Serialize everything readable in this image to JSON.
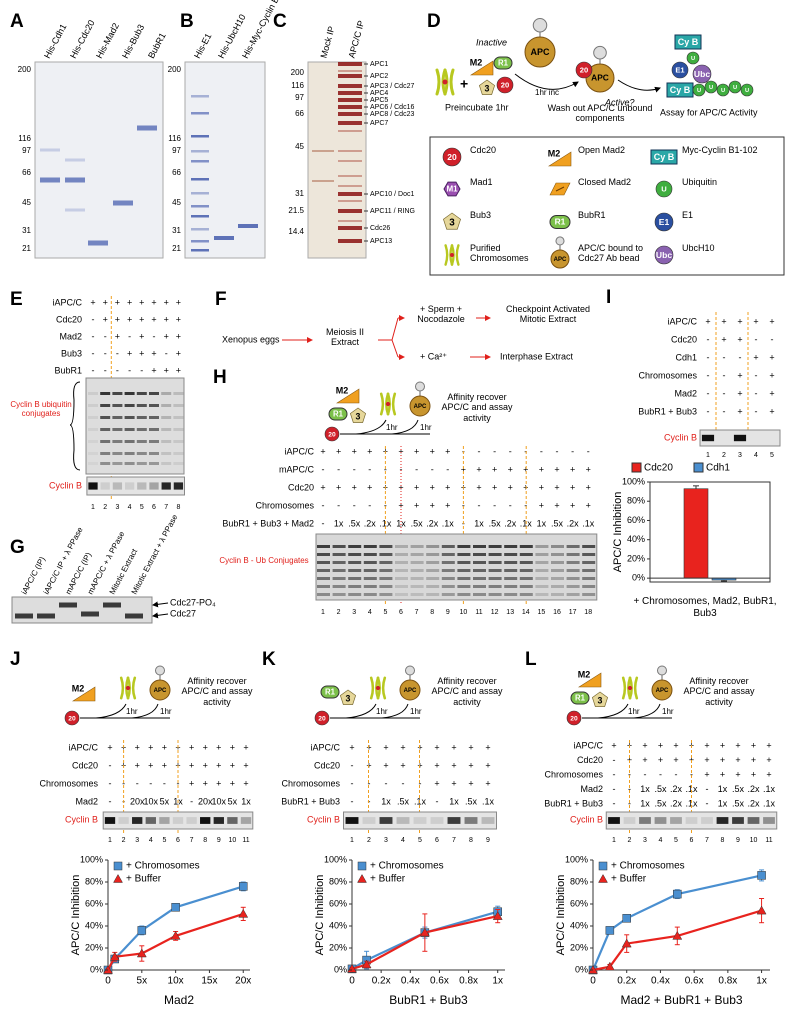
{
  "panels": {
    "A": {
      "label": "A",
      "lanes": [
        "His-Cdh1",
        "His-Cdc20",
        "His-Mad2",
        "His-Bub3",
        "BubR1"
      ],
      "markers": [
        200,
        116,
        97,
        66,
        45,
        31,
        21
      ]
    },
    "B": {
      "label": "B",
      "lanes": [
        "His-E1",
        "His-UbcH10",
        "His-Myc-Cyclin B1-102"
      ],
      "markers": [
        200,
        116,
        97,
        66,
        45,
        31,
        21
      ]
    },
    "C": {
      "label": "C",
      "lanes": [
        "Mock IP",
        "APC/C IP"
      ],
      "markers": [
        200,
        116,
        97,
        66,
        45,
        31,
        21.5,
        14.4
      ],
      "bands": [
        "APC1",
        "APC2",
        "APC3 / Cdc27",
        "APC4",
        "APC5",
        "APC6 / Cdc16",
        "APC8 / Cdc23",
        "APC7",
        "APC10 / Doc1",
        "APC11 / RING",
        "Cdc26",
        "APC13"
      ]
    },
    "D": {
      "label": "D",
      "inactive": "Inactive",
      "apc": "APC",
      "plus": "+",
      "m2": "M2",
      "r1": "R1",
      "bub3": "3",
      "cdc20": "20",
      "preincubate": "Preincubate 1hr",
      "incubation": "1hr inc",
      "wash": "Wash out APC/C unbound components",
      "apc_active": "APC",
      "cdc20_active": "20",
      "active": "Active?",
      "cyclin": "Cy B",
      "ubiquitin": "U",
      "e1": "E1",
      "ubc": "Ubc",
      "product": "Cy B",
      "chain": [
        "U",
        "U",
        "U",
        "U",
        "U"
      ],
      "assay": "Assay for APC/C Activity",
      "legend": [
        {
          "icon": "20",
          "label": "Cdc20"
        },
        {
          "icon": "M2",
          "label": "Open Mad2"
        },
        {
          "icon": "Cy B",
          "label": "Myc-Cyclin B1-102"
        },
        {
          "icon": "M1",
          "label": "Mad1"
        },
        {
          "label": "Closed Mad2"
        },
        {
          "icon": "U",
          "label": "Ubiquitin"
        },
        {
          "icon": "3",
          "label": "Bub3"
        },
        {
          "icon": "R1",
          "label": "BubR1"
        },
        {
          "icon": "E1",
          "label": "E1"
        },
        {
          "label": "Purified Chromosomes"
        },
        {
          "icon": "APC",
          "label": "APC/C bound to Cdc27 Ab bead"
        },
        {
          "icon": "Ubc",
          "label": "UbcH10"
        }
      ]
    },
    "E": {
      "label": "E",
      "rows": [
        {
          "name": "iAPC/C",
          "cells": [
            "+",
            "+",
            "+",
            "+",
            "+",
            "+",
            "+",
            "+"
          ]
        },
        {
          "name": "Cdc20",
          "cells": [
            "-",
            "+",
            "+",
            "+",
            "+",
            "+",
            "+",
            "+"
          ]
        },
        {
          "name": "Mad2",
          "cells": [
            "-",
            "-",
            "+",
            "-",
            "+",
            "-",
            "+",
            "+"
          ]
        },
        {
          "name": "Bub3",
          "cells": [
            "-",
            "-",
            "-",
            "+",
            "+",
            "+",
            "-",
            "+"
          ]
        },
        {
          "name": "BubR1",
          "cells": [
            "-",
            "-",
            "-",
            "-",
            "-",
            "+",
            "+",
            "+"
          ]
        }
      ],
      "conjugates": "Cyclin B ubiquitin conjugates",
      "cyclin": "Cyclin B",
      "lanes": [
        1,
        2,
        3,
        4,
        5,
        6,
        7,
        8
      ]
    },
    "F": {
      "label": "F",
      "source": "Xenopus eggs",
      "extract": "Meiosis II Extract",
      "branch1": "+ Sperm + Nocodazole",
      "result1": "Checkpoint Activated Mitotic Extract",
      "branch2": "+ Ca²⁺",
      "result2": "Interphase Extract"
    },
    "G": {
      "label": "G",
      "lanes": [
        "iAPC/C (IP)",
        "iAPC/C IP + λ PPase",
        "mAPC/C (IP)",
        "mAPC/C + λ PPase",
        "Mitotic Extract",
        "Mitotic Extract + λ PPase"
      ],
      "bands": [
        "Cdc27-PO₄",
        "Cdc27"
      ]
    },
    "H": {
      "label": "H",
      "schematic": {
        "icons": [
          "M2",
          "R1",
          "3"
        ],
        "cdc20": "20",
        "apc": "APC",
        "steps": [
          "1hr",
          "1hr"
        ],
        "caption": "Affinity recover APC/C and assay activity"
      },
      "rows": [
        {
          "name": "iAPC/C",
          "cells": [
            "+",
            "+",
            "+",
            "+",
            "+",
            "+",
            "+",
            "+",
            "+",
            "-",
            "-",
            "-",
            "-",
            "-",
            "-",
            "-",
            "-",
            "-"
          ]
        },
        {
          "name": "mAPC/C",
          "cells": [
            "-",
            "-",
            "-",
            "-",
            "-",
            "-",
            "-",
            "-",
            "-",
            "+",
            "+",
            "+",
            "+",
            "+",
            "+",
            "+",
            "+",
            "+"
          ]
        },
        {
          "name": "Cdc20",
          "cells": [
            "+",
            "+",
            "+",
            "+",
            "+",
            "+",
            "+",
            "+",
            "+",
            "+",
            "+",
            "+",
            "+",
            "+",
            "+",
            "+",
            "+",
            "+"
          ]
        },
        {
          "name": "Chromosomes",
          "cells": [
            "-",
            "-",
            "-",
            "-",
            "-",
            "+",
            "+",
            "+",
            "+",
            "-",
            "-",
            "-",
            "-",
            "-",
            "+",
            "+",
            "+",
            "+"
          ]
        },
        {
          "name": "BubR1 + Bub3 + Mad2",
          "cells": [
            "-",
            "1x",
            ".5x",
            ".2x",
            ".1x",
            "1x",
            ".5x",
            ".2x",
            ".1x",
            "-",
            "1x",
            ".5x",
            ".2x",
            ".1x",
            "1x",
            ".5x",
            ".2x",
            ".1x"
          ]
        }
      ],
      "conjugates": "Cyclin B - Ub Conjugates",
      "lanes": [
        1,
        2,
        3,
        4,
        5,
        6,
        7,
        8,
        9,
        10,
        11,
        12,
        13,
        14,
        15,
        16,
        17,
        18
      ]
    },
    "I": {
      "label": "I",
      "rows": [
        {
          "name": "iAPC/C",
          "cells": [
            "+",
            "+",
            "+",
            "+",
            "+"
          ]
        },
        {
          "name": "Cdc20",
          "cells": [
            "-",
            "+",
            "+",
            "-",
            "-"
          ]
        },
        {
          "name": "Cdh1",
          "cells": [
            "-",
            "-",
            "-",
            "+",
            "+"
          ]
        },
        {
          "name": "Chromosomes",
          "cells": [
            "-",
            "-",
            "+",
            "-",
            "+"
          ]
        },
        {
          "name": "Mad2",
          "cells": [
            "-",
            "-",
            "+",
            "-",
            "+"
          ]
        },
        {
          "name": "BubR1 + Bub3",
          "cells": [
            "-",
            "-",
            "+",
            "-",
            "+"
          ]
        }
      ],
      "cyclin": "Cyclin B",
      "lanes": [
        1,
        2,
        3,
        4,
        5
      ]
    },
    "J": {
      "label": "J",
      "schematic": {
        "icons": [
          "M2"
        ],
        "cdc20": "20",
        "apc": "APC",
        "steps": [
          "1hr",
          "1hr"
        ],
        "caption": "Affinity recover APC/C and assay activity"
      },
      "rows": [
        {
          "name": "iAPC/C",
          "cells": [
            "+",
            "+",
            "+",
            "+",
            "+",
            "+",
            "+",
            "+",
            "+",
            "+",
            "+"
          ]
        },
        {
          "name": "Cdc20",
          "cells": [
            "-",
            "+",
            "+",
            "+",
            "+",
            "+",
            "+",
            "+",
            "+",
            "+",
            "+"
          ]
        },
        {
          "name": "Chromosomes",
          "cells": [
            "-",
            "-",
            "-",
            "-",
            "-",
            "-",
            "+",
            "+",
            "+",
            "+",
            "+"
          ]
        },
        {
          "name": "Mad2",
          "cells": [
            "-",
            "-",
            "20x",
            "10x",
            "5x",
            "1x",
            "-",
            "20x",
            "10x",
            "5x",
            "1x"
          ]
        }
      ],
      "cyclin": "Cyclin B",
      "lanes": [
        1,
        2,
        3,
        4,
        5,
        6,
        7,
        8,
        9,
        10,
        11
      ]
    },
    "K": {
      "label": "K",
      "schematic": {
        "icons": [
          "R1",
          "3"
        ],
        "cdc20": "20",
        "apc": "APC",
        "steps": [
          "1hr",
          "1hr"
        ],
        "caption": "Affinity recover APC/C and assay activity"
      },
      "rows": [
        {
          "name": "iAPC/C",
          "cells": [
            "+",
            "+",
            "+",
            "+",
            "+",
            "+",
            "+",
            "+",
            "+"
          ]
        },
        {
          "name": "Cdc20",
          "cells": [
            "-",
            "+",
            "+",
            "+",
            "+",
            "+",
            "+",
            "+",
            "+"
          ]
        },
        {
          "name": "Chromosomes",
          "cells": [
            "-",
            "-",
            "-",
            "-",
            "-",
            "+",
            "+",
            "+",
            "+"
          ]
        },
        {
          "name": "BubR1 + Bub3",
          "cells": [
            "-",
            "-",
            "1x",
            ".5x",
            ".1x",
            "-",
            "1x",
            ".5x",
            ".1x"
          ]
        }
      ],
      "cyclin": "Cyclin B",
      "lanes": [
        1,
        2,
        3,
        4,
        5,
        6,
        7,
        8,
        9
      ]
    },
    "L": {
      "label": "L",
      "schematic": {
        "icons": [
          "M2",
          "R1",
          "3"
        ],
        "cdc20": "20",
        "apc": "APC",
        "steps": [
          "1hr",
          "1hr"
        ],
        "caption": "Affinity recover APC/C and assay activity"
      },
      "rows": [
        {
          "name": "iAPC/C",
          "cells": [
            "+",
            "+",
            "+",
            "+",
            "+",
            "+",
            "+",
            "+",
            "+",
            "+",
            "+"
          ]
        },
        {
          "name": "Cdc20",
          "cells": [
            "-",
            "+",
            "+",
            "+",
            "+",
            "+",
            "+",
            "+",
            "+",
            "+",
            "+"
          ]
        },
        {
          "name": "Chromosomes",
          "cells": [
            "-",
            "-",
            "-",
            "-",
            "-",
            "-",
            "+",
            "+",
            "+",
            "+",
            "+"
          ]
        },
        {
          "name": "Mad2",
          "cells": [
            "-",
            "-",
            "1x",
            ".5x",
            ".2x",
            ".1x",
            "-",
            "1x",
            ".5x",
            ".2x",
            ".1x"
          ]
        },
        {
          "name": "BubR1 + Bub3",
          "cells": [
            "-",
            "-",
            "1x",
            ".5x",
            ".2x",
            ".1x",
            "-",
            "1x",
            ".5x",
            ".2x",
            ".1x"
          ]
        }
      ],
      "cyclin": "Cyclin B",
      "lanes": [
        1,
        2,
        3,
        4,
        5,
        6,
        7,
        8,
        9,
        10,
        11
      ]
    }
  },
  "chart_data": [
    {
      "type": "bar",
      "categories": [
        "+ Chromosomes, Mad2, BubR1, Bub3"
      ],
      "ylabel": "APC/C Inhibition",
      "series": [
        {
          "name": "Cdc20",
          "color": "#e8231e",
          "values": [
            93
          ],
          "errors": [
            3
          ]
        },
        {
          "name": "Cdh1",
          "color": "#4a8fd0",
          "values": [
            -2
          ],
          "errors": [
            1
          ]
        }
      ],
      "ylim": [
        -4,
        100
      ],
      "yticks": [
        {
          "value": 0,
          "label": "0%"
        },
        {
          "value": 20,
          "label": "20%"
        },
        {
          "value": 40,
          "label": "40%"
        },
        {
          "value": 60,
          "label": "60%"
        },
        {
          "value": 80,
          "label": "80%"
        },
        {
          "value": 100,
          "label": "100%"
        }
      ],
      "legend": "top"
    },
    {
      "type": "line",
      "x": [
        0,
        1,
        5,
        10,
        20
      ],
      "xlabel": "Mad2",
      "ylabel": "APC/C Inhibition",
      "series": [
        {
          "name": "+ Chromosomes",
          "color": "#4a8fd0",
          "marker": "square",
          "values": [
            0,
            10,
            36,
            57,
            76
          ],
          "errors": [
            1,
            3,
            4,
            3,
            4
          ]
        },
        {
          "name": "+ Buffer",
          "color": "#e8231e",
          "marker": "triangle",
          "values": [
            0,
            12,
            15,
            31,
            51
          ],
          "errors": [
            1,
            4,
            7,
            4,
            6
          ]
        }
      ],
      "xlim": [
        0,
        21
      ],
      "xticks": [
        0,
        {
          "value": 5,
          "label": "5x"
        },
        {
          "value": 10,
          "label": "10x"
        },
        {
          "value": 15,
          "label": "15x"
        },
        {
          "value": 20,
          "label": "20x"
        }
      ],
      "ylim": [
        0,
        100
      ],
      "yticks": [
        {
          "value": 0,
          "label": "0%"
        },
        {
          "value": 20,
          "label": "20%"
        },
        {
          "value": 40,
          "label": "40%"
        },
        {
          "value": 60,
          "label": "60%"
        },
        {
          "value": 80,
          "label": "80%"
        },
        {
          "value": 100,
          "label": "100%"
        }
      ],
      "legend": "upper left"
    },
    {
      "type": "line",
      "x": [
        0,
        0.1,
        0.5,
        1
      ],
      "xlabel": "BubR1 + Bub3",
      "ylabel": "APC/C Inhibition",
      "series": [
        {
          "name": "+ Chromosomes",
          "color": "#4a8fd0",
          "marker": "square",
          "values": [
            1,
            9,
            34,
            53
          ],
          "errors": [
            1,
            8,
            5,
            5
          ]
        },
        {
          "name": "+ Buffer",
          "color": "#e8231e",
          "marker": "triangle",
          "values": [
            1,
            5,
            34,
            49
          ],
          "errors": [
            1,
            3,
            17,
            6
          ]
        }
      ],
      "xlim": [
        0,
        1.05
      ],
      "xticks": [
        0,
        {
          "value": 0.2,
          "label": "0.2x"
        },
        {
          "value": 0.4,
          "label": "0.4x"
        },
        {
          "value": 0.6,
          "label": "0.6x"
        },
        {
          "value": 0.8,
          "label": "0.8x"
        },
        {
          "value": 1,
          "label": "1x"
        }
      ],
      "ylim": [
        0,
        100
      ],
      "yticks": [
        {
          "value": 0,
          "label": "0%"
        },
        {
          "value": 20,
          "label": "20%"
        },
        {
          "value": 40,
          "label": "40%"
        },
        {
          "value": 60,
          "label": "60%"
        },
        {
          "value": 80,
          "label": "80%"
        },
        {
          "value": 100,
          "label": "100%"
        }
      ],
      "legend": "upper left"
    },
    {
      "type": "line",
      "x": [
        0,
        0.1,
        0.2,
        0.5,
        1
      ],
      "xlabel": "Mad2 + BubR1 + Bub3",
      "ylabel": "APC/C Inhibition",
      "series": [
        {
          "name": "+ Chromosomes",
          "color": "#4a8fd0",
          "marker": "square",
          "values": [
            0,
            36,
            47,
            69,
            86
          ],
          "errors": [
            1,
            3,
            3,
            4,
            5
          ]
        },
        {
          "name": "+ Buffer",
          "color": "#e8231e",
          "marker": "triangle",
          "values": [
            0,
            3,
            24,
            31,
            54
          ],
          "errors": [
            1,
            2,
            8,
            8,
            11
          ]
        }
      ],
      "xlim": [
        0,
        1.05
      ],
      "xticks": [
        0,
        {
          "value": 0.2,
          "label": "0.2x"
        },
        {
          "value": 0.4,
          "label": "0.4x"
        },
        {
          "value": 0.6,
          "label": "0.6x"
        },
        {
          "value": 0.8,
          "label": "0.8x"
        },
        {
          "value": 1,
          "label": "1x"
        }
      ],
      "ylim": [
        0,
        100
      ],
      "yticks": [
        {
          "value": 0,
          "label": "0%"
        },
        {
          "value": 20,
          "label": "20%"
        },
        {
          "value": 40,
          "label": "40%"
        },
        {
          "value": 60,
          "label": "60%"
        },
        {
          "value": 80,
          "label": "80%"
        },
        {
          "value": 100,
          "label": "100%"
        }
      ],
      "legend": "upper left"
    }
  ]
}
